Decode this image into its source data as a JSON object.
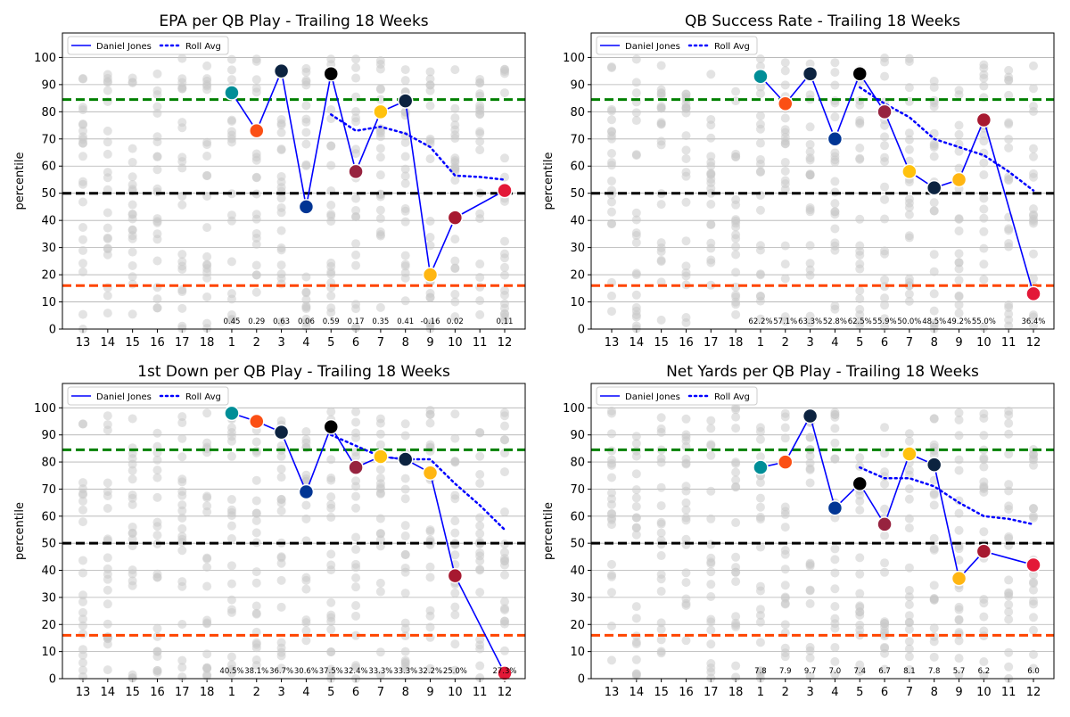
{
  "chart_data": [
    {
      "type": "line",
      "title": "EPA per QB Play - Trailing 18 Weeks",
      "ylabel": "percentile",
      "xlabel": "",
      "categories": [
        "13",
        "14",
        "15",
        "16",
        "17",
        "18",
        "1",
        "2",
        "3",
        "4",
        "5",
        "6",
        "7",
        "8",
        "9",
        "10",
        "11",
        "12"
      ],
      "ylim": [
        0,
        109
      ],
      "yticks": [
        0,
        10,
        20,
        30,
        40,
        50,
        60,
        70,
        80,
        90,
        100
      ],
      "grid": "y",
      "legend_position": "top-left",
      "series": [
        {
          "name": "Daniel Jones",
          "style": "solid",
          "color": "#0000ff",
          "values": [
            null,
            null,
            null,
            null,
            null,
            null,
            87,
            73,
            95,
            45,
            94,
            58,
            80,
            84,
            20,
            41,
            null,
            51
          ]
        },
        {
          "name": "Roll Avg",
          "style": "dotted",
          "color": "#0000ff",
          "values": [
            null,
            null,
            null,
            null,
            null,
            null,
            null,
            null,
            null,
            null,
            79,
            73,
            74.5,
            72,
            67,
            56.5,
            56,
            55
          ]
        }
      ],
      "reference_lines": [
        {
          "y": 84.5,
          "color": "#008000"
        },
        {
          "y": 50,
          "color": "#000000"
        },
        {
          "y": 16,
          "color": "#ff4500"
        }
      ],
      "data_labels": [
        "",
        "",
        "",
        "",
        "",
        "",
        "0.45",
        "0.29",
        "0.63",
        "0.06",
        "0.59",
        "0.17",
        "0.35",
        "0.41",
        "-0.16",
        "0.02",
        "",
        "0.11"
      ]
    },
    {
      "type": "line",
      "title": "QB Success Rate - Trailing 18 Weeks",
      "ylabel": "percentile",
      "xlabel": "",
      "categories": [
        "13",
        "14",
        "15",
        "16",
        "17",
        "18",
        "1",
        "2",
        "3",
        "4",
        "5",
        "6",
        "7",
        "8",
        "9",
        "10",
        "11",
        "12"
      ],
      "ylim": [
        0,
        109
      ],
      "yticks": [
        0,
        10,
        20,
        30,
        40,
        50,
        60,
        70,
        80,
        90,
        100
      ],
      "grid": "y",
      "legend_position": "top-left",
      "series": [
        {
          "name": "Daniel Jones",
          "style": "solid",
          "color": "#0000ff",
          "values": [
            null,
            null,
            null,
            null,
            null,
            null,
            93,
            83,
            94,
            70,
            94,
            80,
            58,
            52,
            55,
            77,
            null,
            13
          ]
        },
        {
          "name": "Roll Avg",
          "style": "dotted",
          "color": "#0000ff",
          "values": [
            null,
            null,
            null,
            null,
            null,
            null,
            null,
            null,
            null,
            null,
            89,
            83,
            78,
            70,
            67,
            64,
            58,
            51
          ]
        }
      ],
      "reference_lines": [
        {
          "y": 84.5,
          "color": "#008000"
        },
        {
          "y": 50,
          "color": "#000000"
        },
        {
          "y": 16,
          "color": "#ff4500"
        }
      ],
      "data_labels": [
        "",
        "",
        "",
        "",
        "",
        "",
        "62.2%",
        "57.1%",
        "63.3%",
        "52.8%",
        "62.5%",
        "55.9%",
        "50.0%",
        "48.5%",
        "49.2%",
        "55.0%",
        "",
        "36.4%"
      ]
    },
    {
      "type": "line",
      "title": "1st Down per QB Play - Trailing 18 Weeks",
      "ylabel": "percentile",
      "xlabel": "",
      "categories": [
        "13",
        "14",
        "15",
        "16",
        "17",
        "18",
        "1",
        "2",
        "3",
        "4",
        "5",
        "6",
        "7",
        "8",
        "9",
        "10",
        "11",
        "12"
      ],
      "ylim": [
        0,
        109
      ],
      "yticks": [
        0,
        10,
        20,
        30,
        40,
        50,
        60,
        70,
        80,
        90,
        100
      ],
      "grid": "y",
      "legend_position": "top-left",
      "series": [
        {
          "name": "Daniel Jones",
          "style": "solid",
          "color": "#0000ff",
          "values": [
            null,
            null,
            null,
            null,
            null,
            null,
            98,
            95,
            91,
            69,
            93,
            78,
            82,
            81,
            76,
            38,
            null,
            2
          ]
        },
        {
          "name": "Roll Avg",
          "style": "dotted",
          "color": "#0000ff",
          "values": [
            null,
            null,
            null,
            null,
            null,
            null,
            null,
            null,
            null,
            null,
            90,
            86,
            82,
            81,
            81,
            72,
            64,
            55
          ]
        }
      ],
      "reference_lines": [
        {
          "y": 84.5,
          "color": "#008000"
        },
        {
          "y": 50,
          "color": "#000000"
        },
        {
          "y": 16,
          "color": "#ff4500"
        }
      ],
      "data_labels": [
        "",
        "",
        "",
        "",
        "",
        "",
        "40.5%",
        "38.1%",
        "36.7%",
        "30.6%",
        "37.5%",
        "32.4%",
        "33.3%",
        "33.3%",
        "32.2%",
        "25.0%",
        "",
        "27.3%"
      ]
    },
    {
      "type": "line",
      "title": "Net Yards per QB Play - Trailing 18 Weeks",
      "ylabel": "percentile",
      "xlabel": "",
      "categories": [
        "13",
        "14",
        "15",
        "16",
        "17",
        "18",
        "1",
        "2",
        "3",
        "4",
        "5",
        "6",
        "7",
        "8",
        "9",
        "10",
        "11",
        "12"
      ],
      "ylim": [
        0,
        109
      ],
      "yticks": [
        0,
        10,
        20,
        30,
        40,
        50,
        60,
        70,
        80,
        90,
        100
      ],
      "grid": "y",
      "legend_position": "top-left",
      "series": [
        {
          "name": "Daniel Jones",
          "style": "solid",
          "color": "#0000ff",
          "values": [
            null,
            null,
            null,
            null,
            null,
            null,
            78,
            80,
            97,
            63,
            72,
            57,
            83,
            79,
            37,
            47,
            null,
            42
          ]
        },
        {
          "name": "Roll Avg",
          "style": "dotted",
          "color": "#0000ff",
          "values": [
            null,
            null,
            null,
            null,
            null,
            null,
            null,
            null,
            null,
            null,
            78,
            74,
            74,
            71,
            65,
            60,
            59,
            57
          ]
        }
      ],
      "reference_lines": [
        {
          "y": 84.5,
          "color": "#008000"
        },
        {
          "y": 50,
          "color": "#000000"
        },
        {
          "y": 16,
          "color": "#ff4500"
        }
      ],
      "data_labels": [
        "",
        "",
        "",
        "",
        "",
        "",
        "7.8",
        "7.9",
        "9.7",
        "7.0",
        "7.4",
        "6.7",
        "8.1",
        "7.8",
        "5.7",
        "6.2",
        "",
        "6.0"
      ]
    }
  ],
  "opponent_logos": [
    null,
    null,
    null,
    null,
    null,
    null,
    {
      "icon": "dolphins-logo",
      "color": "#008e97"
    },
    {
      "icon": "broncos-logo",
      "color": "#fb4f14"
    },
    {
      "icon": "titans-logo",
      "color": "#0c2340"
    },
    {
      "icon": "rams-logo",
      "color": "#003594"
    },
    {
      "icon": "raiders-logo",
      "color": "#000000"
    },
    {
      "icon": "cardinals-logo",
      "color": "#97233f"
    },
    {
      "icon": "chargers-logo",
      "color": "#ffc20e"
    },
    {
      "icon": "titans-logo",
      "color": "#0c2340"
    },
    {
      "icon": "steelers-logo",
      "color": "#ffb612"
    },
    {
      "icon": "falcons-logo",
      "color": "#a71930"
    },
    null,
    {
      "icon": "chiefs-logo",
      "color": "#e31837"
    }
  ]
}
